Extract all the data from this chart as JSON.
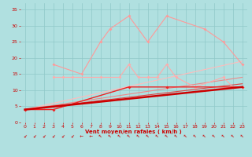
{
  "background_color": "#b0e0e0",
  "grid_color": "#90c8c8",
  "xlabel": "Vent moyen/en rafales ( km/h )",
  "xlabel_color": "#cc0000",
  "tick_color": "#cc0000",
  "ylim": [
    0,
    37
  ],
  "xlim": [
    -0.5,
    23.5
  ],
  "yticks": [
    0,
    5,
    10,
    15,
    20,
    25,
    30,
    35
  ],
  "xticks": [
    0,
    1,
    2,
    3,
    4,
    5,
    6,
    7,
    8,
    9,
    10,
    11,
    12,
    13,
    14,
    15,
    16,
    17,
    18,
    19,
    20,
    21,
    22,
    23
  ],
  "line_light_pink": {
    "color": "#ff9999",
    "lw": 0.8,
    "ms": 2,
    "marker": "D",
    "x": [
      3,
      6,
      8,
      9,
      11,
      13,
      15,
      19,
      21,
      23
    ],
    "y": [
      18,
      15,
      25,
      29,
      33,
      25,
      33,
      29,
      25,
      18
    ]
  },
  "line_med_pink": {
    "color": "#ffaaaa",
    "lw": 0.8,
    "ms": 2,
    "marker": "D",
    "x": [
      3,
      4,
      5,
      8,
      10,
      11,
      12,
      13,
      14,
      15,
      16,
      18,
      21,
      22,
      23
    ],
    "y": [
      14,
      14,
      14,
      14,
      14,
      18,
      14,
      14,
      14,
      18,
      14,
      11,
      14,
      11,
      11
    ]
  },
  "line_pink_straight": {
    "color": "#ffbbbb",
    "lw": 0.8,
    "x": [
      0,
      23
    ],
    "y": [
      4,
      19
    ]
  },
  "line_darkpink_straight": {
    "color": "#ee8888",
    "lw": 0.8,
    "x": [
      0,
      23
    ],
    "y": [
      4,
      14
    ]
  },
  "line_red_bold": {
    "color": "#cc0000",
    "lw": 1.8,
    "x": [
      0,
      23
    ],
    "y": [
      4,
      11
    ]
  },
  "line_red_med": {
    "color": "#ee2222",
    "lw": 1.0,
    "ms": 2,
    "marker": "D",
    "x": [
      0,
      3,
      11,
      15,
      23
    ],
    "y": [
      4,
      4,
      11,
      11,
      11
    ]
  },
  "line_red_diag": {
    "color": "#dd4444",
    "lw": 0.8,
    "x": [
      0,
      23
    ],
    "y": [
      4,
      12
    ]
  },
  "arrows": [
    0,
    1,
    2,
    3,
    4,
    5,
    6,
    7,
    8,
    9,
    10,
    11,
    12,
    13,
    14,
    15,
    16,
    17,
    18,
    19,
    20,
    21,
    22,
    23
  ],
  "arrow_angles_deg": [
    225,
    225,
    225,
    225,
    225,
    225,
    270,
    270,
    315,
    315,
    315,
    315,
    315,
    315,
    315,
    315,
    315,
    315,
    315,
    315,
    315,
    315,
    315,
    315
  ]
}
